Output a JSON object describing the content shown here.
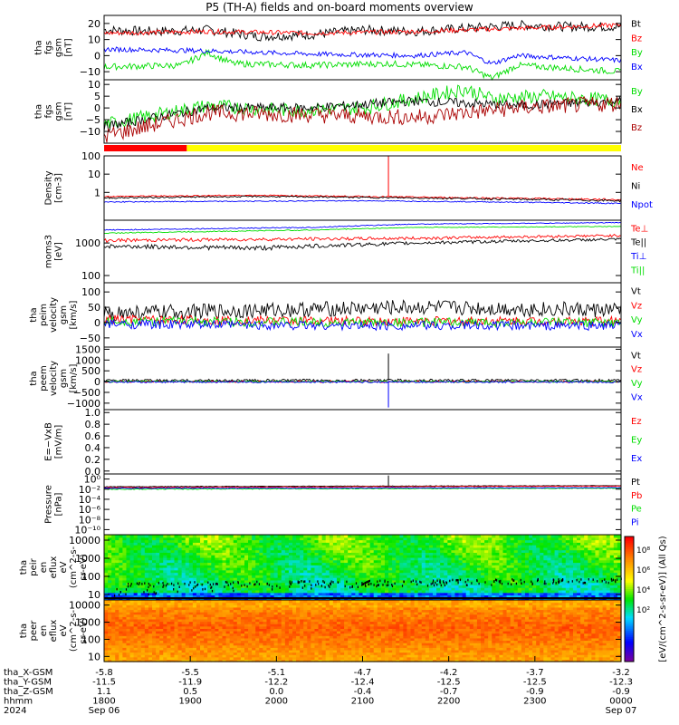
{
  "title": "P5 (TH-A) fields and on-board moments overview",
  "colors": {
    "black": "#000000",
    "red": "#ff0000",
    "green": "#00dd00",
    "blue": "#0000ff",
    "darkred": "#aa0000",
    "yellow": "#ffff00"
  },
  "chart_data": [
    {
      "type": "line",
      "ylabel": [
        "tha",
        "fgs",
        "gsm",
        "[nT]"
      ],
      "ylim": [
        -15,
        25
      ],
      "yticks": [
        "20",
        "10",
        "0",
        "−10"
      ],
      "ytick_values": [
        20,
        10,
        0,
        -10
      ],
      "series": [
        {
          "name": "Bt",
          "color": "#000000",
          "keys": [
            [
              0,
              16
            ],
            [
              0.1,
              15
            ],
            [
              0.2,
              16
            ],
            [
              0.3,
              12
            ],
            [
              0.4,
              13
            ],
            [
              0.5,
              16
            ],
            [
              0.6,
              15
            ],
            [
              0.7,
              17
            ],
            [
              0.8,
              19
            ],
            [
              0.9,
              18
            ],
            [
              1,
              18
            ]
          ],
          "noise": 3
        },
        {
          "name": "Bz",
          "color": "#ff0000",
          "keys": [
            [
              0,
              14
            ],
            [
              0.2,
              15
            ],
            [
              0.4,
              14
            ],
            [
              0.6,
              15
            ],
            [
              0.8,
              17
            ],
            [
              1,
              19
            ]
          ],
          "noise": 1.5
        },
        {
          "name": "By",
          "color": "#00dd00",
          "keys": [
            [
              0,
              -7
            ],
            [
              0.15,
              -6
            ],
            [
              0.2,
              2
            ],
            [
              0.25,
              -5
            ],
            [
              0.4,
              -6
            ],
            [
              0.55,
              -5
            ],
            [
              0.7,
              -7
            ],
            [
              0.75,
              -14
            ],
            [
              0.8,
              -6
            ],
            [
              0.9,
              -8
            ],
            [
              1,
              -10
            ]
          ],
          "noise": 2
        },
        {
          "name": "Bx",
          "color": "#0000ff",
          "keys": [
            [
              0,
              4
            ],
            [
              0.2,
              3
            ],
            [
              0.4,
              1
            ],
            [
              0.6,
              0
            ],
            [
              0.7,
              2
            ],
            [
              0.75,
              -5
            ],
            [
              0.8,
              0
            ],
            [
              1,
              -3
            ]
          ],
          "noise": 1.5
        }
      ]
    },
    {
      "type": "line",
      "ylabel": [
        "tha",
        "fgs",
        "gsm",
        "[nT]"
      ],
      "ylim": [
        -15,
        12
      ],
      "yticks": [
        "10",
        "5",
        "0",
        "−5",
        "−10"
      ],
      "ytick_values": [
        10,
        5,
        0,
        -5,
        -10
      ],
      "series": [
        {
          "name": "By",
          "color": "#00dd00",
          "keys": [
            [
              0,
              -7
            ],
            [
              0.2,
              1
            ],
            [
              0.35,
              -1
            ],
            [
              0.5,
              0
            ],
            [
              0.7,
              8
            ],
            [
              0.75,
              4
            ],
            [
              0.85,
              5
            ],
            [
              1,
              3
            ]
          ],
          "noise": 3
        },
        {
          "name": "Bx",
          "color": "#000000",
          "keys": [
            [
              0,
              -8
            ],
            [
              0.2,
              0
            ],
            [
              0.4,
              0
            ],
            [
              0.6,
              3
            ],
            [
              0.8,
              1
            ],
            [
              1,
              3
            ]
          ],
          "noise": 2
        },
        {
          "name": "Bz",
          "color": "#aa0000",
          "keys": [
            [
              0,
              -12
            ],
            [
              0.2,
              -2
            ],
            [
              0.4,
              -3
            ],
            [
              0.6,
              -4
            ],
            [
              0.8,
              0
            ],
            [
              1,
              2
            ]
          ],
          "noise": 3.5
        }
      ]
    },
    {
      "type": "line",
      "ylabel": [
        "Density",
        "[cm-3]"
      ],
      "yscale": "log",
      "ylim": [
        0.03,
        100
      ],
      "yticks": [
        "100",
        "10",
        "1"
      ],
      "ytick_values": [
        100,
        10,
        1
      ],
      "series": [
        {
          "name": "Ne",
          "color": "#ff0000",
          "keys": [
            [
              0,
              0.6
            ],
            [
              0.3,
              0.7
            ],
            [
              0.6,
              0.55
            ],
            [
              1,
              0.4
            ]
          ],
          "noise": 0.05,
          "spike": [
            0.55,
            100
          ]
        },
        {
          "name": "Ni",
          "color": "#000000",
          "keys": [
            [
              0,
              0.5
            ],
            [
              0.3,
              0.6
            ],
            [
              0.6,
              0.5
            ],
            [
              1,
              0.35
            ]
          ],
          "noise": 0.05
        },
        {
          "name": "Npot",
          "color": "#0000ff",
          "keys": [
            [
              0,
              0.3
            ],
            [
              0.5,
              0.35
            ],
            [
              1,
              0.25
            ]
          ],
          "noise": 0.02
        }
      ]
    },
    {
      "type": "line",
      "ylabel": [
        "moms3",
        "[eV]"
      ],
      "yscale": "log",
      "ylim": [
        60,
        5000
      ],
      "yticks": [
        "1000",
        "100"
      ],
      "ytick_values": [
        1000,
        100
      ],
      "series": [
        {
          "name": "Te⊥",
          "color": "#ff0000",
          "keys": [
            [
              0,
              1200
            ],
            [
              0.3,
              1300
            ],
            [
              0.6,
              1400
            ],
            [
              1,
              1700
            ]
          ],
          "noise": 150
        },
        {
          "name": "Te||",
          "color": "#000000",
          "keys": [
            [
              0,
              800
            ],
            [
              0.3,
              700
            ],
            [
              0.6,
              1000
            ],
            [
              1,
              1300
            ]
          ],
          "noise": 120
        },
        {
          "name": "Ti⊥",
          "color": "#0000ff",
          "keys": [
            [
              0,
              2500
            ],
            [
              0.4,
              3000
            ],
            [
              0.6,
              3800
            ],
            [
              1,
              4200
            ]
          ],
          "noise": 100
        },
        {
          "name": "Ti||",
          "color": "#00dd00",
          "keys": [
            [
              0,
              2000
            ],
            [
              0.4,
              2500
            ],
            [
              0.6,
              3000
            ],
            [
              1,
              3200
            ]
          ],
          "noise": 80
        }
      ]
    },
    {
      "type": "line",
      "ylabel": [
        "tha",
        "peim",
        "velocity",
        "gsm",
        "[km/s]"
      ],
      "ylim": [
        -80,
        130
      ],
      "yticks": [
        "100",
        "50",
        "0",
        "−50"
      ],
      "ytick_values": [
        100,
        50,
        0,
        -50
      ],
      "series": [
        {
          "name": "Vt",
          "color": "#000000",
          "keys": [
            [
              0,
              30
            ],
            [
              0.3,
              40
            ],
            [
              0.6,
              50
            ],
            [
              1,
              40
            ]
          ],
          "noise": 25
        },
        {
          "name": "Vz",
          "color": "#ff0000",
          "keys": [
            [
              0,
              10
            ],
            [
              0.5,
              5
            ],
            [
              1,
              5
            ]
          ],
          "noise": 15
        },
        {
          "name": "Vy",
          "color": "#00dd00",
          "keys": [
            [
              0,
              5
            ],
            [
              0.5,
              0
            ],
            [
              1,
              0
            ]
          ],
          "noise": 15
        },
        {
          "name": "Vx",
          "color": "#0000ff",
          "keys": [
            [
              0,
              -5
            ],
            [
              0.5,
              -10
            ],
            [
              1,
              -10
            ]
          ],
          "noise": 15
        }
      ]
    },
    {
      "type": "line",
      "ylabel": [
        "tha",
        "peem",
        "velocity",
        "gsm",
        "[km/s]"
      ],
      "ylim": [
        -1300,
        1600
      ],
      "yticks": [
        "1500",
        "1000",
        "500",
        "0",
        "−500",
        "−1000"
      ],
      "ytick_values": [
        1500,
        1000,
        500,
        0,
        -500,
        -1000
      ],
      "series": [
        {
          "name": "Vt",
          "color": "#000000",
          "keys": [
            [
              0,
              50
            ],
            [
              1,
              60
            ]
          ],
          "noise": 60,
          "spike": [
            0.55,
            1300
          ]
        },
        {
          "name": "Vz",
          "color": "#ff0000",
          "keys": [
            [
              0,
              0
            ],
            [
              1,
              0
            ]
          ],
          "noise": 40
        },
        {
          "name": "Vy",
          "color": "#00dd00",
          "keys": [
            [
              0,
              0
            ],
            [
              1,
              0
            ]
          ],
          "noise": 40
        },
        {
          "name": "Vx",
          "color": "#0000ff",
          "keys": [
            [
              0,
              -20
            ],
            [
              1,
              -20
            ]
          ],
          "noise": 40,
          "spike": [
            0.55,
            -1200
          ]
        }
      ]
    },
    {
      "type": "line",
      "ylabel": [
        "E=−VxB",
        "[mV/m]"
      ],
      "ylim": [
        -0.05,
        1.05
      ],
      "yticks": [
        "1.0",
        "0.8",
        "0.6",
        "0.4",
        "0.2",
        "0.0"
      ],
      "ytick_values": [
        1,
        0.8,
        0.6,
        0.4,
        0.2,
        0
      ],
      "series": [
        {
          "name": "Ez",
          "color": "#ff0000",
          "keys": []
        },
        {
          "name": "Ey",
          "color": "#00dd00",
          "keys": []
        },
        {
          "name": "Ex",
          "color": "#0000ff",
          "keys": []
        }
      ]
    },
    {
      "type": "line",
      "ylabel": [
        "Pressure",
        "[nPa]"
      ],
      "yscale": "log",
      "ylim": [
        1e-11,
        10
      ],
      "yticks": [
        "10⁰",
        "10⁻²",
        "10⁻⁴",
        "10⁻⁶",
        "10⁻⁸",
        "10⁻¹⁰"
      ],
      "ytick_values": [
        1,
        0.01,
        0.0001,
        1e-06,
        1e-08,
        1e-10
      ],
      "series": [
        {
          "name": "Pt",
          "color": "#000000",
          "keys": [
            [
              0,
              0.03
            ],
            [
              1,
              0.05
            ]
          ],
          "noise": 0.005,
          "spike": [
            0.55,
            5
          ]
        },
        {
          "name": "Pb",
          "color": "#ff0000",
          "keys": [
            [
              0,
              0.02
            ],
            [
              1,
              0.04
            ]
          ],
          "noise": 0.004
        },
        {
          "name": "Pe",
          "color": "#00dd00",
          "keys": [
            [
              0,
              0.01
            ],
            [
              1,
              0.015
            ]
          ],
          "noise": 0.002
        },
        {
          "name": "Pi",
          "color": "#0000ff",
          "keys": [
            [
              0,
              0.015
            ],
            [
              1,
              0.02
            ]
          ],
          "noise": 0.003
        }
      ]
    },
    {
      "type": "heatmap",
      "ylabel": [
        "tha",
        "peir",
        "en",
        "eflux",
        "eV",
        "(cm^2-s-",
        "sr-eV)"
      ],
      "yscale": "log",
      "ylim": [
        5,
        20000
      ],
      "yticks": [
        "10000",
        "1000",
        "100",
        "10"
      ],
      "ytick_values": [
        10000,
        1000,
        100,
        10
      ],
      "colormap": "rainbow",
      "clim_log": [
        1,
        9
      ]
    },
    {
      "type": "heatmap",
      "ylabel": [
        "tha",
        "peer",
        "en",
        "eflux",
        "eV",
        "(cm^2-s-",
        "sr-eV)"
      ],
      "yscale": "log",
      "ylim": [
        5,
        20000
      ],
      "yticks": [
        "10000",
        "1000",
        "100",
        "10"
      ],
      "ytick_values": [
        10000,
        1000,
        100,
        10
      ],
      "colormap": "rainbow",
      "clim_log": [
        1,
        9
      ]
    }
  ],
  "mode_bar": [
    {
      "color": "#ff0000",
      "from": 0,
      "to": 0.16
    },
    {
      "color": "#ffff00",
      "from": 0.16,
      "to": 1
    }
  ],
  "colorbar": {
    "ticks": [
      "10⁸",
      "10⁶",
      "10⁴",
      "10²"
    ],
    "label": "[eV/(cm^2-s-sr-eV)] (All Qs)"
  },
  "xaxis": {
    "row_labels": [
      "tha_X-GSM",
      "tha_Y-GSM",
      "tha_Z-GSM",
      "hhmm",
      "2024"
    ],
    "columns": [
      [
        "-5.8",
        "-11.5",
        "1.1",
        "1800",
        "Sep 06"
      ],
      [
        "-5.5",
        "-11.9",
        "0.5",
        "1900",
        ""
      ],
      [
        "-5.1",
        "-12.2",
        "0.0",
        "2000",
        ""
      ],
      [
        "-4.7",
        "-12.4",
        "-0.4",
        "2100",
        ""
      ],
      [
        "-4.2",
        "-12.5",
        "-0.7",
        "2200",
        ""
      ],
      [
        "-3.7",
        "-12.5",
        "-0.9",
        "2300",
        ""
      ],
      [
        "-3.2",
        "-12.3",
        "-0.9",
        "0000",
        "Sep 07"
      ]
    ]
  }
}
